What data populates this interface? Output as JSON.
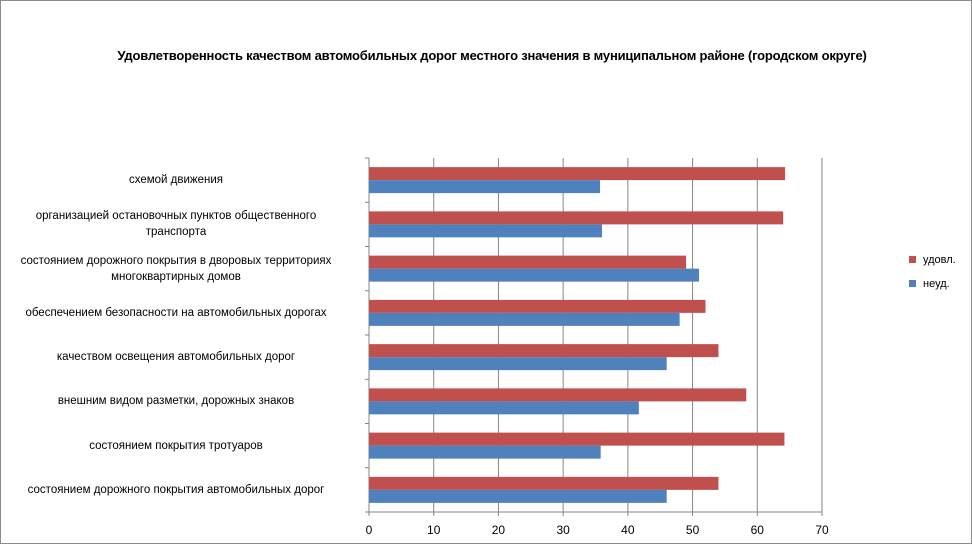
{
  "chart_data": {
    "type": "bar",
    "orientation": "horizontal",
    "title": "Удовлетворенность качеством автомобильных дорог местного значения в муниципальном районе (городском округе)",
    "categories": [
      "схемой движения",
      "организацией остановочных пунктов общественного транспорта",
      "состоянием дорожного покрытия в дворовых территориях многоквартирных домов",
      "обеспечением  безопасности на автомобильных дорогах",
      "качеством  освещения  автомобильных дорог",
      "внешним  видом разметки, дорожных знаков",
      "состоянием  покрытия тротуаров",
      "состоянием дорожного покрытия автомобильных дорог"
    ],
    "category_lines": [
      [
        "схемой движения"
      ],
      [
        "организацией остановочных пунктов общественного",
        "транспорта"
      ],
      [
        "состоянием дорожного покрытия в дворовых территориях",
        "многоквартирных домов"
      ],
      [
        "обеспечением  безопасности на автомобильных дорогах"
      ],
      [
        "качеством  освещения  автомобильных дорог"
      ],
      [
        "внешним  видом разметки, дорожных знаков"
      ],
      [
        "состоянием  покрытия тротуаров"
      ],
      [
        "состоянием дорожного покрытия автомобильных дорог"
      ]
    ],
    "series": [
      {
        "name": "удовл.",
        "color": "#c0504d",
        "values": [
          64.3,
          64.0,
          49.0,
          52.0,
          54.0,
          58.3,
          64.2,
          54.0
        ]
      },
      {
        "name": "неуд.",
        "color": "#4f81bd",
        "values": [
          35.7,
          36.0,
          51.0,
          48.0,
          46.0,
          41.7,
          35.8,
          46.0
        ]
      }
    ],
    "x_ticks": [
      0,
      10,
      20,
      30,
      40,
      50,
      60,
      70
    ],
    "xlim": [
      0,
      70
    ],
    "xlabel": "",
    "ylabel": "",
    "grid": true,
    "legend_position": "right"
  }
}
